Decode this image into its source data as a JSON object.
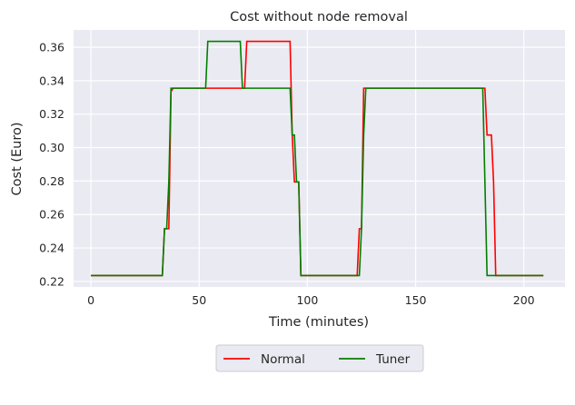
{
  "chart_data": {
    "type": "line",
    "title": "Cost without node removal",
    "xlabel": "Time (minutes)",
    "ylabel": "Cost (Euro)",
    "xlim": [
      -8,
      219
    ],
    "ylim": [
      0.2167,
      0.3703
    ],
    "xticks": [
      0,
      50,
      100,
      150,
      200
    ],
    "yticks": [
      0.22,
      0.24,
      0.26,
      0.28,
      0.3,
      0.32,
      0.34,
      0.36
    ],
    "xtick_labels": [
      "0",
      "50",
      "100",
      "150",
      "200"
    ],
    "ytick_labels": [
      "0.22",
      "0.24",
      "0.26",
      "0.28",
      "0.30",
      "0.32",
      "0.34",
      "0.36"
    ],
    "grid": true,
    "legend_position": "bottom-center",
    "background": "#eaeaf2",
    "series": [
      {
        "name": "Normal",
        "color": "#ff0000",
        "x": [
          0,
          33,
          34,
          35,
          36,
          37,
          38,
          70,
          71,
          72,
          73,
          92,
          93,
          94,
          95,
          96,
          97,
          98,
          123,
          124,
          125,
          126,
          127,
          128,
          129,
          182,
          183,
          184,
          185,
          186,
          187,
          188,
          209
        ],
        "y": [
          0.2235,
          0.2235,
          0.2515,
          0.2515,
          0.2515,
          0.3335,
          0.3355,
          0.3355,
          0.3355,
          0.3635,
          0.3635,
          0.3635,
          0.3075,
          0.2795,
          0.2795,
          0.2795,
          0.2235,
          0.2235,
          0.2235,
          0.2515,
          0.2515,
          0.3355,
          0.3355,
          0.3355,
          0.3355,
          0.3355,
          0.3075,
          0.3075,
          0.3075,
          0.2795,
          0.2235,
          0.2235,
          0.2235
        ]
      },
      {
        "name": "Tuner",
        "color": "#008000",
        "x": [
          0,
          33,
          34,
          35,
          36,
          37,
          38,
          53,
          54,
          69,
          70,
          71,
          92,
          93,
          94,
          95,
          96,
          97,
          98,
          124,
          125,
          126,
          127,
          128,
          129,
          181,
          182,
          183,
          184,
          209
        ],
        "y": [
          0.2235,
          0.2235,
          0.2515,
          0.2515,
          0.2795,
          0.3355,
          0.3355,
          0.3355,
          0.3635,
          0.3635,
          0.3355,
          0.3355,
          0.3355,
          0.3075,
          0.3075,
          0.2795,
          0.2795,
          0.2235,
          0.2235,
          0.2235,
          0.2515,
          0.3075,
          0.3355,
          0.3355,
          0.3355,
          0.3355,
          0.2795,
          0.2235,
          0.2235,
          0.2235
        ]
      }
    ]
  }
}
